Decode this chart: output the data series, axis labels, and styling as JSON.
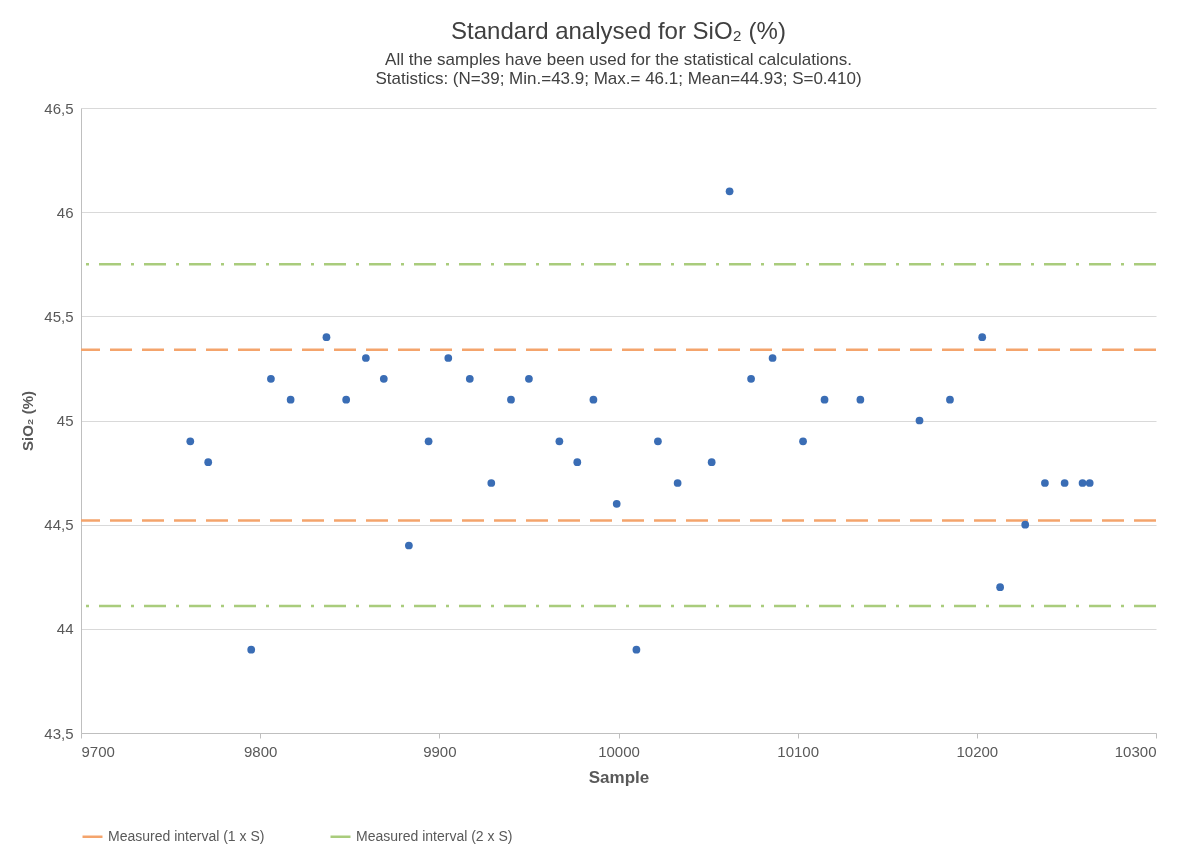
{
  "chart_data": {
    "type": "scatter",
    "title": "Standard analysed for SiO₂ (%)",
    "subtitle": [
      "All the samples have been used for the statistical calculations.",
      "Statistics: (N=39; Min.=43.9; Max.= 46.1; Mean=44.93; S=0.410)"
    ],
    "xlabel": "Sample",
    "ylabel": "SiO₂ (%)",
    "x": [
      9761,
      9771,
      9795,
      9806,
      9817,
      9837,
      9848,
      9859,
      9869,
      9883,
      9894,
      9905,
      9917,
      9929,
      9940,
      9950,
      9967,
      9977,
      9986,
      9999,
      10010,
      10022,
      10033,
      10052,
      10062,
      10074,
      10086,
      10103,
      10115,
      10135,
      10168,
      10185,
      10203,
      10213,
      10227,
      10238,
      10249,
      10259,
      10263
    ],
    "series": [
      {
        "color": "#3a6db5",
        "values": [
          44.9,
          44.8,
          43.9,
          45.2,
          45.1,
          45.4,
          45.1,
          45.3,
          45.2,
          44.4,
          44.9,
          45.3,
          45.2,
          44.7,
          45.1,
          45.2,
          44.9,
          44.8,
          45.1,
          44.6,
          43.9,
          44.9,
          44.7,
          44.8,
          46.1,
          45.2,
          45.3,
          44.9,
          45.1,
          45.1,
          45.0,
          45.1,
          45.4,
          44.2,
          44.5,
          44.7,
          44.7,
          44.7,
          44.7
        ]
      }
    ],
    "xlim": [
      9700,
      10300
    ],
    "xticks": [
      9700,
      9800,
      9900,
      10000,
      10100,
      10200,
      10300
    ],
    "ylim": [
      43.5,
      46.5
    ],
    "yticks": [
      {
        "value": 43.5,
        "label": "43,5"
      },
      {
        "value": 44,
        "label": "44"
      },
      {
        "value": 44.5,
        "label": "44,5"
      },
      {
        "value": 45,
        "label": "45"
      },
      {
        "value": 45.5,
        "label": "45,5"
      },
      {
        "value": 46,
        "label": "46"
      },
      {
        "value": 46.5,
        "label": "46,5"
      }
    ],
    "ref_lines": [
      {
        "axis": "y",
        "value": 45.34,
        "label": "Measured interval (1 x S)",
        "color": "#f4a46c",
        "line_style": "dashed"
      },
      {
        "axis": "y",
        "value": 44.52,
        "color": "#f4a46c",
        "line_style": "dashed"
      },
      {
        "axis": "y",
        "value": 45.75,
        "label": "Measured interval (2 x S)",
        "color": "#a9cc7c",
        "line_style": "dashdot"
      },
      {
        "axis": "y",
        "value": 44.11,
        "color": "#a9cc7c",
        "line_style": "dashdot"
      }
    ],
    "grid": "y",
    "legend": "bottom",
    "marker": "circle"
  }
}
